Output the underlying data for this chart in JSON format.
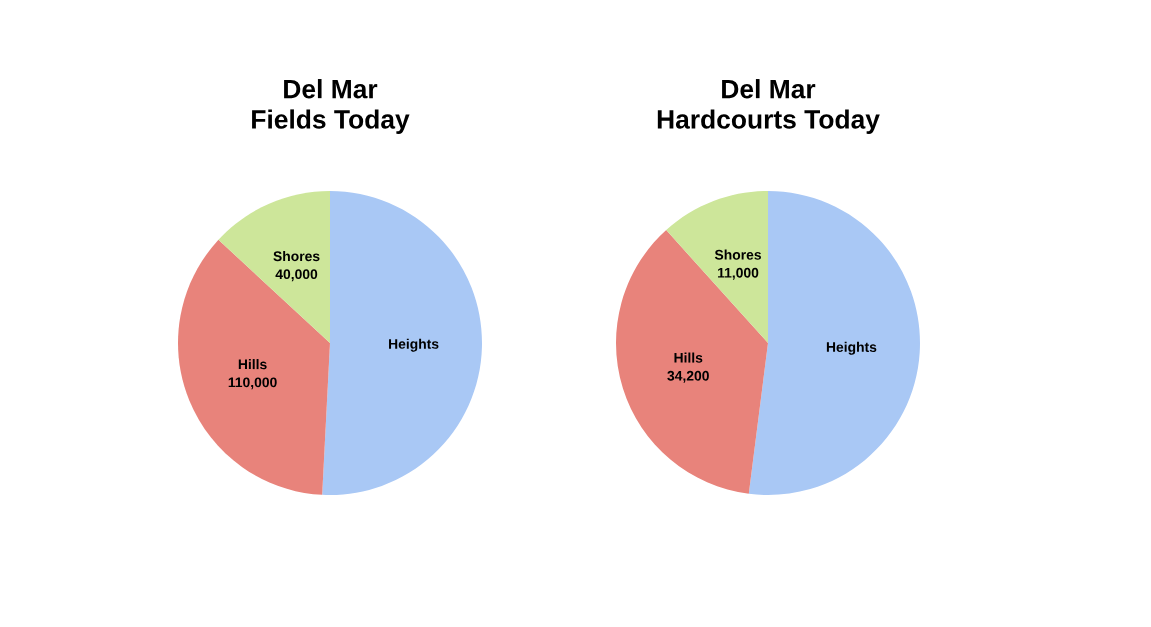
{
  "chart_data": [
    {
      "type": "pie",
      "title": "Del Mar\nFields Today",
      "categories": [
        "Heights",
        "Hills",
        "Shores"
      ],
      "values": [
        155000,
        110000,
        40000
      ],
      "value_labels": [
        null,
        "110,000",
        "40,000"
      ],
      "colors": [
        "#a9c8f5",
        "#e8837b",
        "#cde69a"
      ]
    },
    {
      "type": "pie",
      "title": "Del Mar\nHardcourts Today",
      "categories": [
        "Heights",
        "Hills",
        "Shores"
      ],
      "values": [
        49000,
        34200,
        11000
      ],
      "value_labels": [
        null,
        "34,200",
        "11,000"
      ],
      "colors": [
        "#a9c8f5",
        "#e8837b",
        "#cde69a"
      ]
    }
  ]
}
